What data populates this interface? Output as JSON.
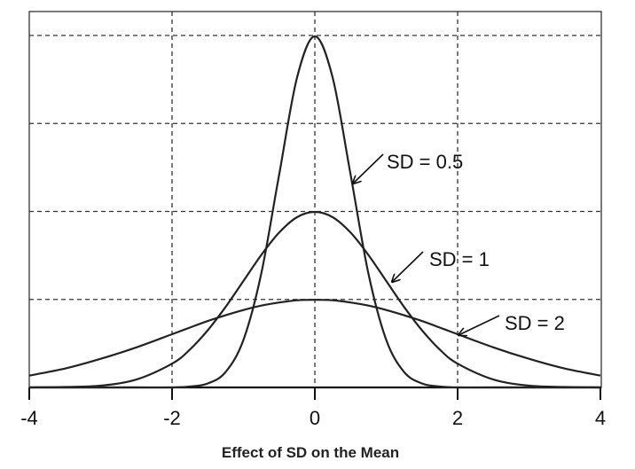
{
  "chart_data": {
    "type": "line",
    "title": "",
    "xlabel": "Effect of SD on the Mean",
    "ylabel": "",
    "xlim": [
      -4,
      4
    ],
    "ylim": [
      0,
      0.8
    ],
    "x_ticks": [
      -4,
      -2,
      0,
      2,
      4
    ],
    "x_tick_labels": [
      "-4",
      "-2",
      "0",
      "2",
      "4"
    ],
    "y_gridlines": [
      0.2,
      0.4,
      0.6,
      0.8
    ],
    "grid": "dashed",
    "legend": "none",
    "line_color": "#222222",
    "series": [
      {
        "name": "SD = 0.5",
        "x": [
          -4,
          -3.5,
          -3,
          -2.5,
          -2,
          -1.75,
          -1.5,
          -1.25,
          -1,
          -0.75,
          -0.5,
          -0.25,
          0,
          0.25,
          0.5,
          0.75,
          1,
          1.25,
          1.5,
          1.75,
          2,
          2.5,
          3,
          3.5,
          4
        ],
        "y": [
          0.0,
          0.0,
          0.0,
          0.0,
          0.0,
          0.002,
          0.009,
          0.035,
          0.108,
          0.259,
          0.484,
          0.704,
          0.798,
          0.704,
          0.484,
          0.259,
          0.108,
          0.035,
          0.009,
          0.002,
          0.0,
          0.0,
          0.0,
          0.0,
          0.0
        ]
      },
      {
        "name": "SD = 1",
        "x": [
          -4,
          -3.5,
          -3,
          -2.5,
          -2,
          -1.75,
          -1.5,
          -1.25,
          -1,
          -0.75,
          -0.5,
          -0.25,
          0,
          0.25,
          0.5,
          0.75,
          1,
          1.25,
          1.5,
          1.75,
          2,
          2.5,
          3,
          3.5,
          4
        ],
        "y": [
          0.0,
          0.001,
          0.004,
          0.018,
          0.054,
          0.086,
          0.13,
          0.183,
          0.242,
          0.301,
          0.352,
          0.387,
          0.399,
          0.387,
          0.352,
          0.301,
          0.242,
          0.183,
          0.13,
          0.086,
          0.054,
          0.018,
          0.004,
          0.001,
          0.0
        ]
      },
      {
        "name": "SD = 2",
        "x": [
          -4,
          -3.5,
          -3,
          -2.5,
          -2,
          -1.75,
          -1.5,
          -1.25,
          -1,
          -0.75,
          -0.5,
          -0.25,
          0,
          0.25,
          0.5,
          0.75,
          1,
          1.25,
          1.5,
          1.75,
          2,
          2.5,
          3,
          3.5,
          4
        ],
        "y": [
          0.027,
          0.043,
          0.065,
          0.091,
          0.121,
          0.136,
          0.151,
          0.164,
          0.176,
          0.186,
          0.193,
          0.198,
          0.199,
          0.198,
          0.193,
          0.186,
          0.176,
          0.164,
          0.151,
          0.136,
          0.121,
          0.091,
          0.065,
          0.043,
          0.027
        ]
      }
    ],
    "annotations": [
      {
        "text": "SD = 0.5",
        "series": "SD = 0.5"
      },
      {
        "text": "SD = 1",
        "series": "SD = 1"
      },
      {
        "text": "SD = 2",
        "series": "SD = 2"
      }
    ]
  }
}
